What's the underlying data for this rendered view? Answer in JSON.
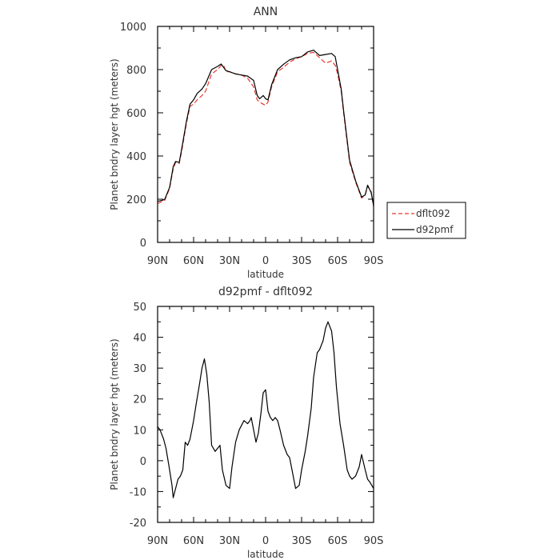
{
  "chart_data": [
    {
      "type": "line",
      "title": "ANN",
      "xlabel": "latitude",
      "ylabel": "Planet bndry layer hgt (meters)",
      "xlim": [
        90,
        -90
      ],
      "ylim": [
        0,
        1000
      ],
      "xticks": [
        90,
        60,
        30,
        0,
        -30,
        -60,
        -90
      ],
      "xtick_labels": [
        "90N",
        "60N",
        "30N",
        "0",
        "30S",
        "60S",
        "90S"
      ],
      "yticks": [
        0,
        200,
        400,
        600,
        800,
        1000
      ],
      "ytick_labels": [
        "0",
        "200",
        "400",
        "600",
        "800",
        "1000"
      ],
      "legend_position": "right-outside",
      "x": [
        90,
        86,
        84,
        80,
        77,
        75,
        72,
        70,
        66,
        63,
        60,
        57,
        53,
        50,
        45,
        40,
        37,
        35,
        33,
        30,
        25,
        20,
        15,
        10,
        7,
        5,
        2,
        0,
        -2,
        -5,
        -10,
        -15,
        -20,
        -25,
        -30,
        -35,
        -40,
        -42,
        -45,
        -50,
        -55,
        -58,
        -60,
        -63,
        -65,
        -70,
        -75,
        -80,
        -83,
        -85,
        -88,
        -90
      ],
      "series": [
        {
          "name": "dflt092",
          "color": "#e8392f",
          "dash": "dashed",
          "values": [
            180,
            190,
            195,
            250,
            340,
            370,
            365,
            420,
            550,
            630,
            640,
            660,
            680,
            700,
            780,
            800,
            820,
            820,
            790,
            790,
            780,
            775,
            760,
            720,
            660,
            650,
            640,
            635,
            650,
            720,
            790,
            810,
            835,
            850,
            860,
            875,
            880,
            870,
            855,
            830,
            840,
            820,
            780,
            700,
            600,
            370,
            280,
            205,
            220,
            260,
            235,
            165
          ]
        },
        {
          "name": "d92pmf",
          "color": "#000000",
          "dash": "solid",
          "values": [
            190,
            195,
            200,
            255,
            350,
            375,
            370,
            430,
            560,
            640,
            660,
            690,
            710,
            735,
            800,
            815,
            826,
            810,
            795,
            790,
            780,
            775,
            770,
            750,
            680,
            665,
            680,
            665,
            660,
            730,
            800,
            825,
            845,
            855,
            860,
            882,
            890,
            880,
            865,
            870,
            875,
            860,
            800,
            710,
            610,
            380,
            285,
            210,
            220,
            265,
            230,
            170
          ]
        }
      ]
    },
    {
      "type": "line",
      "title": "d92pmf - dflt092",
      "xlabel": "latitude",
      "ylabel": "Planet bndry layer hgt (meters)",
      "xlim": [
        90,
        -90
      ],
      "ylim": [
        -20,
        50
      ],
      "xticks": [
        90,
        60,
        30,
        0,
        -30,
        -60,
        -90
      ],
      "xtick_labels": [
        "90N",
        "60N",
        "30N",
        "0",
        "30S",
        "60S",
        "90S"
      ],
      "yticks": [
        -20,
        -10,
        0,
        10,
        20,
        30,
        40,
        50
      ],
      "ytick_labels": [
        "-20",
        "-10",
        "0",
        "10",
        "20",
        "30",
        "40",
        "50"
      ],
      "series": [
        {
          "color": "#000000",
          "dash": "solid",
          "x": [
            90,
            88,
            85,
            83,
            80,
            78,
            77,
            75,
            73,
            71,
            69,
            67,
            65,
            63,
            60,
            58,
            55,
            53,
            51,
            49,
            47,
            45,
            42,
            40,
            38,
            36,
            33,
            30,
            28,
            25,
            22,
            18,
            15,
            13,
            12,
            10,
            8,
            6,
            4,
            2,
            0,
            -2,
            -4,
            -6,
            -8,
            -10,
            -12,
            -15,
            -18,
            -20,
            -22,
            -25,
            -28,
            -30,
            -33,
            -35,
            -38,
            -40,
            -43,
            -45,
            -48,
            -50,
            -52,
            -55,
            -57,
            -59,
            -60,
            -62,
            -65,
            -68,
            -70,
            -72,
            -75,
            -78,
            -80,
            -83,
            -85,
            -87,
            -90
          ],
          "values": [
            11,
            10,
            7,
            4,
            -3,
            -8,
            -12,
            -9,
            -6,
            -5,
            -3,
            6,
            5,
            7,
            13,
            18,
            25,
            30,
            33,
            28,
            19,
            5,
            3,
            4,
            5,
            -3,
            -8,
            -9,
            -2,
            6,
            10,
            13,
            12,
            13,
            14,
            10,
            6,
            9,
            15,
            22,
            23,
            16,
            14,
            13,
            14,
            13,
            10,
            5,
            2,
            1,
            -3,
            -9,
            -8,
            -3,
            3,
            8,
            17,
            27,
            35,
            36,
            39,
            43,
            45,
            42,
            35,
            24,
            20,
            12,
            5,
            -3,
            -5,
            -6,
            -5,
            -2,
            2,
            -3,
            -6,
            -7,
            -9
          ]
        }
      ]
    }
  ]
}
